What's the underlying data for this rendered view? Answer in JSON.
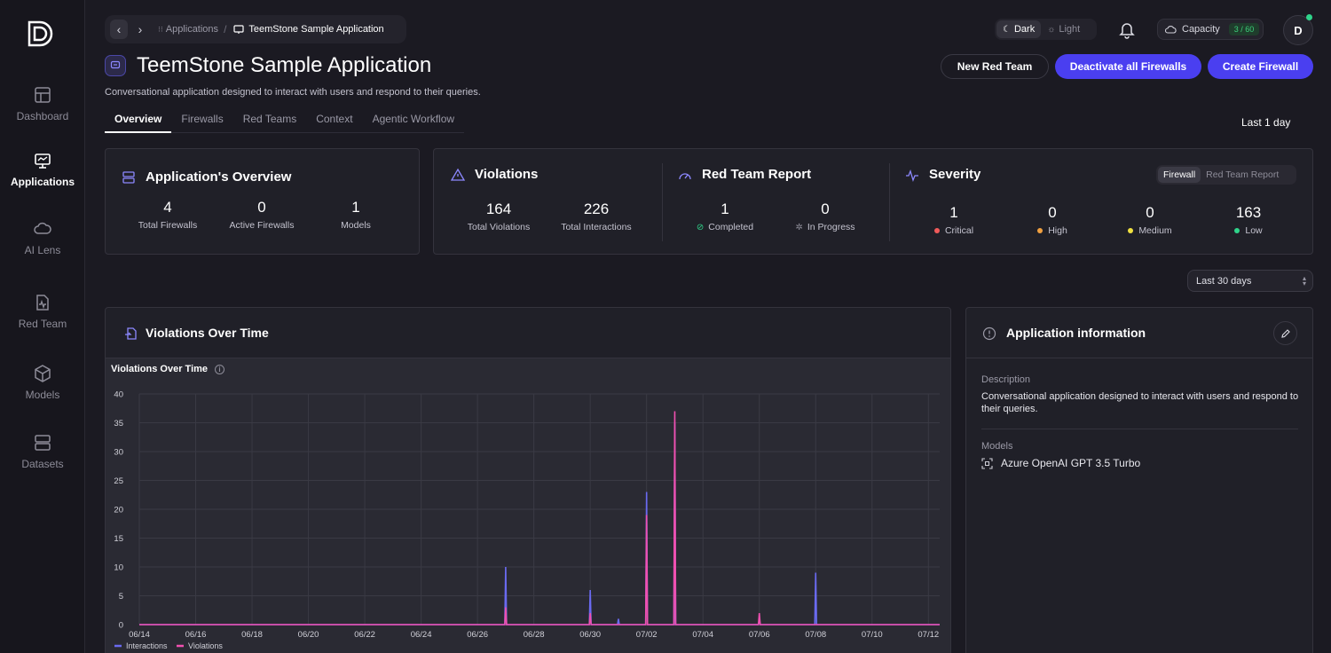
{
  "sidebar": {
    "items": [
      {
        "label": "Dashboard",
        "icon": "dashboard-icon"
      },
      {
        "label": "Applications",
        "icon": "applications-icon"
      },
      {
        "label": "AI Lens",
        "icon": "cloud-icon"
      },
      {
        "label": "Red Team",
        "icon": "red-team-icon"
      },
      {
        "label": "Models",
        "icon": "cube-icon"
      },
      {
        "label": "Datasets",
        "icon": "database-icon"
      }
    ],
    "active": "Applications"
  },
  "breadcrumb": {
    "parent": "Applications",
    "current": "TeemStone Sample Application"
  },
  "theme": {
    "dark": "Dark",
    "light": "Light",
    "selected": "Dark"
  },
  "capacity": {
    "label": "Capacity",
    "value": "3 / 60"
  },
  "user": {
    "initial": "D"
  },
  "header": {
    "title": "TeemStone Sample Application",
    "description": "Conversational application designed to interact with users and respond to their queries.",
    "buttons": {
      "new_red_team": "New Red Team",
      "deactivate": "Deactivate all Firewalls",
      "create": "Create Firewall"
    }
  },
  "tabs": [
    {
      "label": "Overview",
      "active": true
    },
    {
      "label": "Firewalls"
    },
    {
      "label": "Red Teams"
    },
    {
      "label": "Context"
    },
    {
      "label": "Agentic Workflow"
    }
  ],
  "time_range": "Last 1 day",
  "overview": {
    "title": "Application's Overview",
    "stats": [
      {
        "value": "4",
        "label": "Total Firewalls"
      },
      {
        "value": "0",
        "label": "Active Firewalls"
      },
      {
        "value": "1",
        "label": "Models"
      }
    ]
  },
  "violations": {
    "title": "Violations",
    "stats": [
      {
        "value": "164",
        "label": "Total Violations"
      },
      {
        "value": "226",
        "label": "Total Interactions"
      }
    ]
  },
  "red_team_report": {
    "title": "Red Team Report",
    "stats": [
      {
        "value": "1",
        "label": "Completed"
      },
      {
        "value": "0",
        "label": "In Progress"
      }
    ]
  },
  "severity": {
    "title": "Severity",
    "toggle": [
      "Firewall",
      "Red Team Report"
    ],
    "selected": "Firewall",
    "stats": [
      {
        "value": "1",
        "label": "Critical",
        "color": "#f05a5a"
      },
      {
        "value": "0",
        "label": "High",
        "color": "#f0a040"
      },
      {
        "value": "0",
        "label": "Medium",
        "color": "#f0e040"
      },
      {
        "value": "163",
        "label": "Low",
        "color": "#2fd38a"
      }
    ]
  },
  "period_select": "Last 30 days",
  "violations_panel": {
    "title": "Violations Over Time",
    "chart_label": "Violations Over Time"
  },
  "app_info": {
    "title": "Application information",
    "description_label": "Description",
    "description": "Conversational application designed to interact with users and respond to their queries.",
    "models_label": "Models",
    "model": "Azure OpenAI GPT 3.5 Turbo"
  },
  "chart_data": {
    "type": "line",
    "title": "Violations Over Time",
    "xlabel": "",
    "ylabel": "",
    "ylim": [
      0,
      40
    ],
    "yticks": [
      0,
      5,
      10,
      15,
      20,
      25,
      30,
      35,
      40
    ],
    "xticks": [
      "06/14",
      "06/16",
      "06/18",
      "06/20",
      "06/22",
      "06/24",
      "06/26",
      "06/28",
      "06/30",
      "07/02",
      "07/04",
      "07/06",
      "07/08",
      "07/10",
      "07/12"
    ],
    "grid": true,
    "legend_position": "bottom-left",
    "series": [
      {
        "name": "Interactions",
        "color": "#6a6af0",
        "points": [
          [
            "06/27",
            10
          ],
          [
            "06/30",
            6
          ],
          [
            "07/01",
            1
          ],
          [
            "07/02",
            23
          ],
          [
            "07/03",
            35
          ],
          [
            "07/03",
            5
          ],
          [
            "07/03",
            8
          ],
          [
            "07/06",
            1
          ],
          [
            "07/08",
            9
          ]
        ]
      },
      {
        "name": "Violations",
        "color": "#f050b0",
        "points": [
          [
            "06/27",
            3
          ],
          [
            "06/30",
            2
          ],
          [
            "07/02",
            19
          ],
          [
            "07/03",
            37
          ],
          [
            "07/06",
            2
          ]
        ]
      }
    ]
  }
}
